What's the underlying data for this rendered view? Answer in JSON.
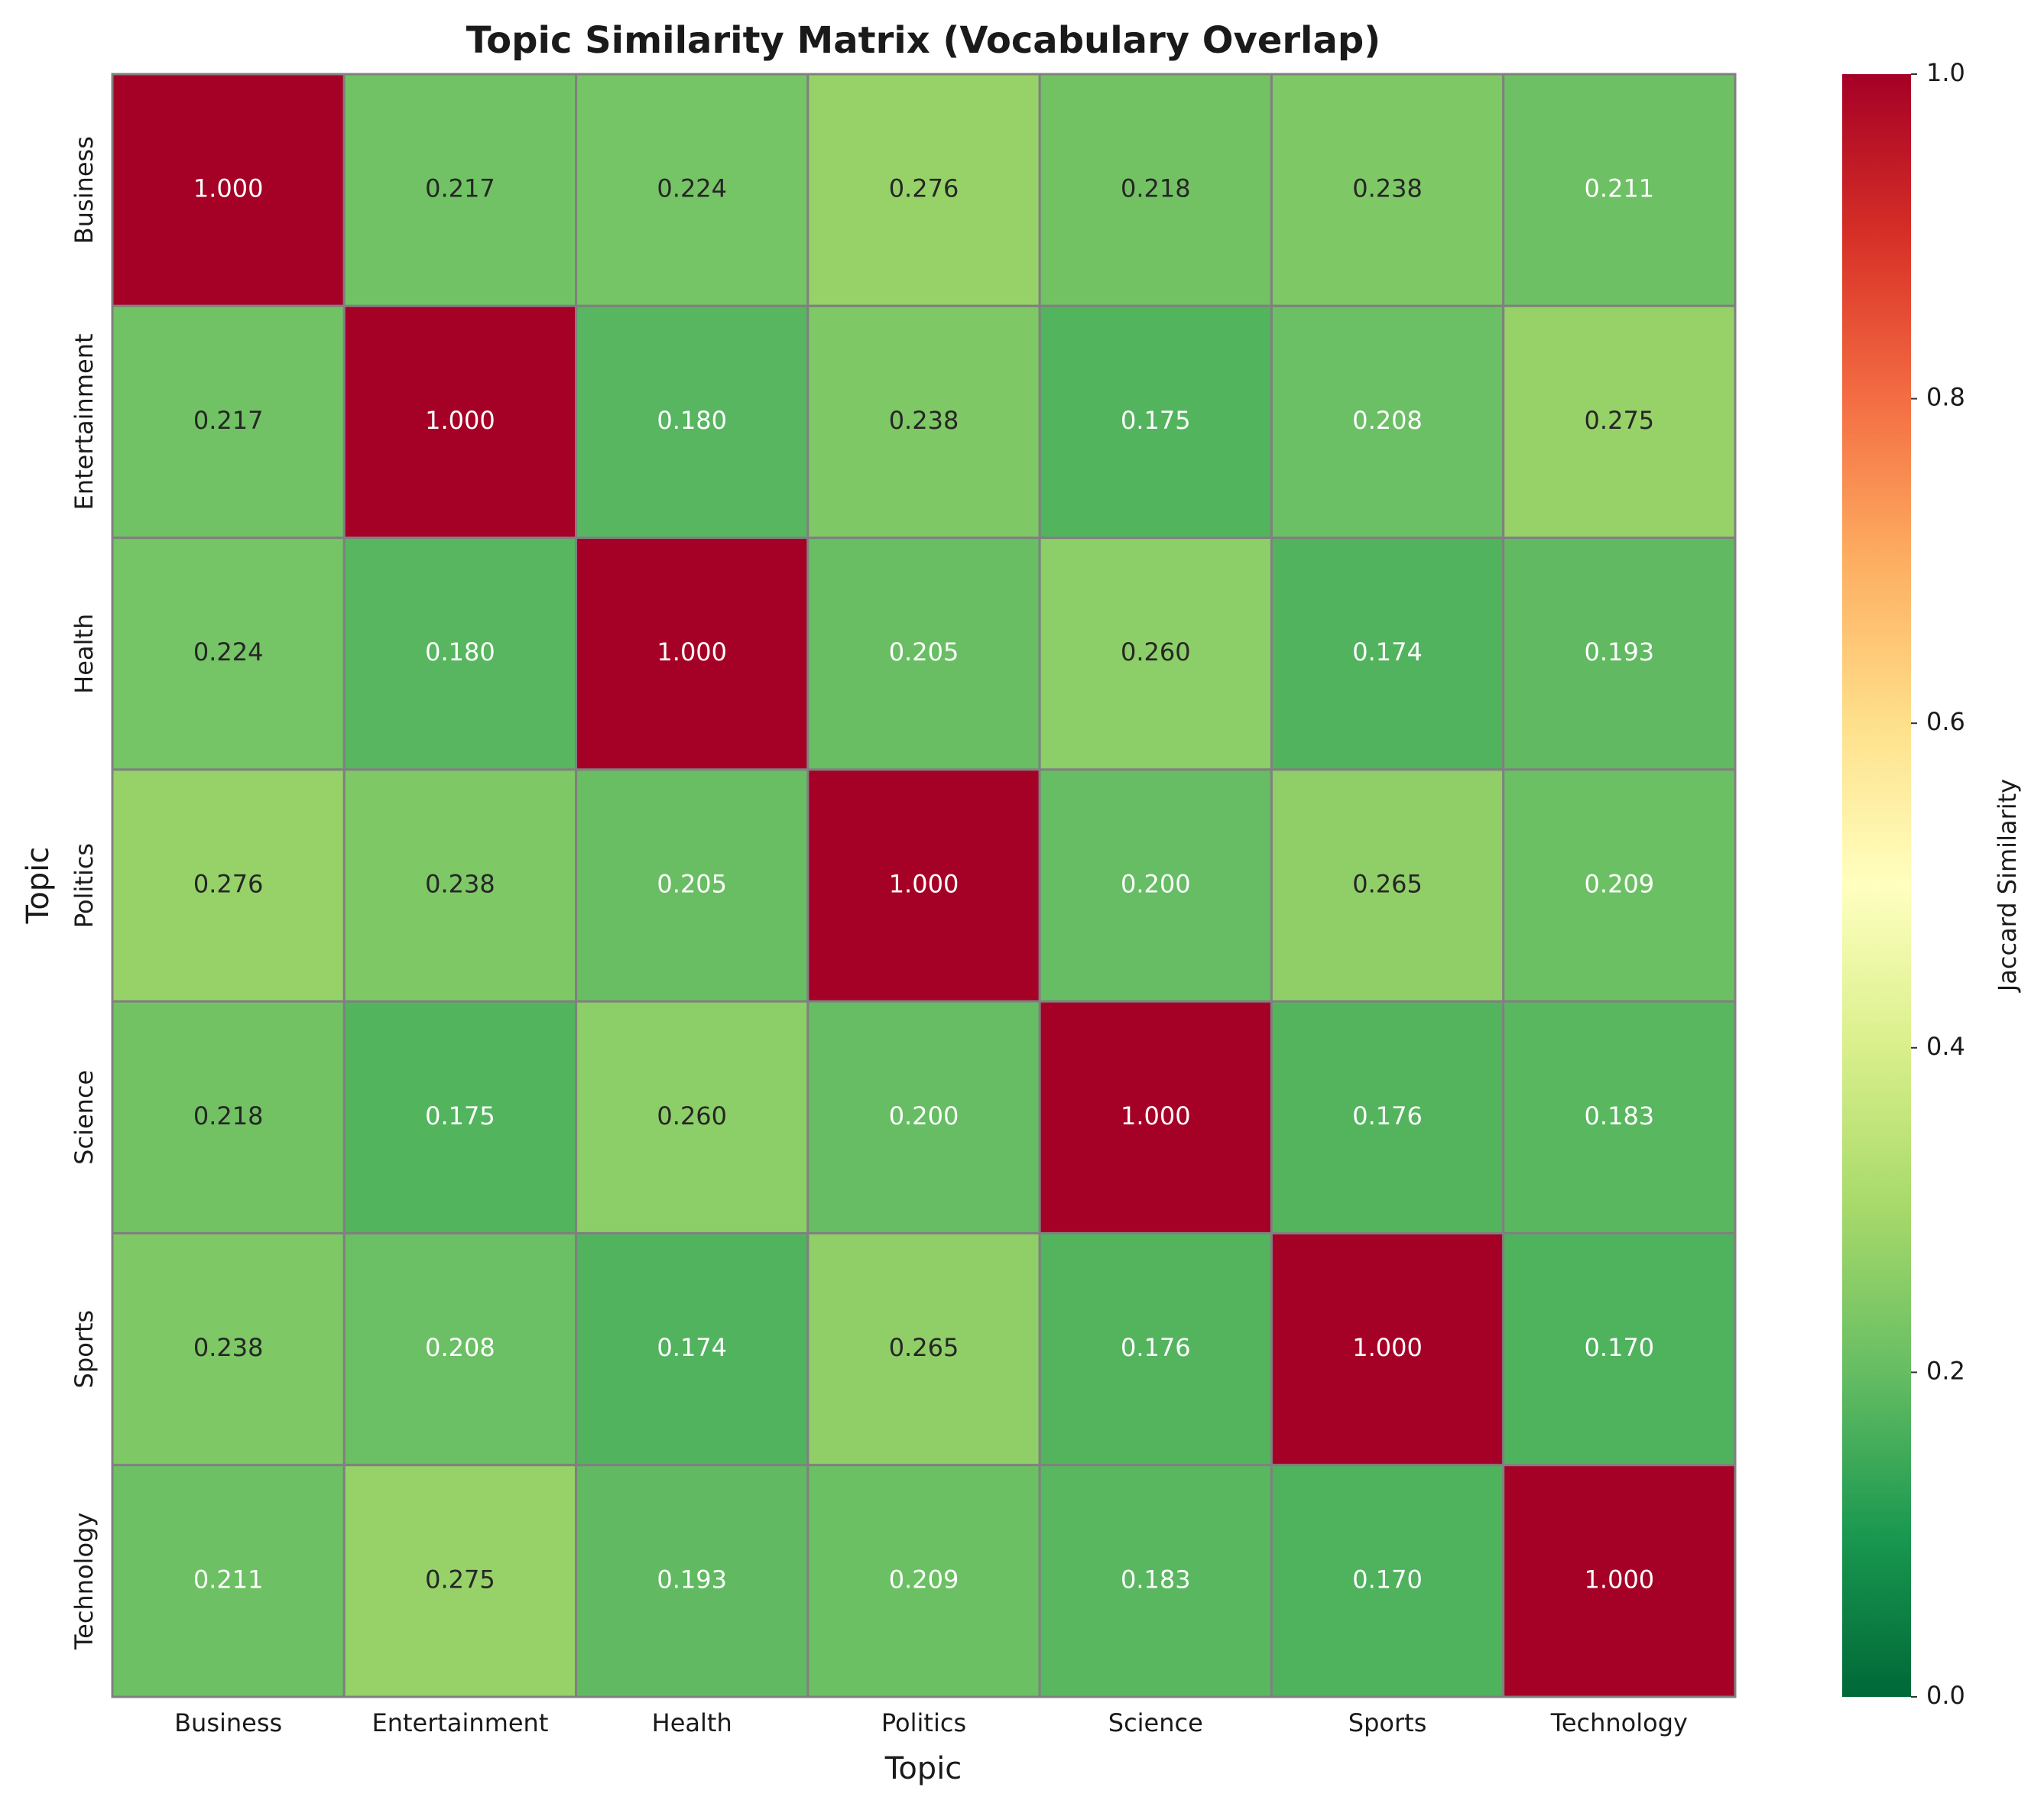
{
  "chart_data": {
    "type": "heatmap",
    "title": "Topic Similarity Matrix (Vocabulary Overlap)",
    "xlabel": "Topic",
    "ylabel": "Topic",
    "x_categories": [
      "Business",
      "Entertainment",
      "Health",
      "Politics",
      "Science",
      "Sports",
      "Technology"
    ],
    "y_categories": [
      "Business",
      "Entertainment",
      "Health",
      "Politics",
      "Science",
      "Sports",
      "Technology"
    ],
    "values": [
      [
        1,
        0.217,
        0.224,
        0.276,
        0.218,
        0.238,
        0.211
      ],
      [
        0.217,
        1,
        0.18,
        0.238,
        0.175,
        0.208,
        0.275
      ],
      [
        0.224,
        0.18,
        1,
        0.205,
        0.26,
        0.174,
        0.193
      ],
      [
        0.276,
        0.238,
        0.205,
        1,
        0.2,
        0.265,
        0.209
      ],
      [
        0.218,
        0.175,
        0.26,
        0.2,
        1,
        0.176,
        0.183
      ],
      [
        0.238,
        0.208,
        0.174,
        0.265,
        0.176,
        1,
        0.17
      ],
      [
        0.211,
        0.275,
        0.193,
        0.209,
        0.183,
        0.17,
        1
      ]
    ],
    "value_labels": [
      [
        "1.000",
        "0.217",
        "0.224",
        "0.276",
        "0.218",
        "0.238",
        "0.211"
      ],
      [
        "0.217",
        "1.000",
        "0.180",
        "0.238",
        "0.175",
        "0.208",
        "0.275"
      ],
      [
        "0.224",
        "0.180",
        "1.000",
        "0.205",
        "0.260",
        "0.174",
        "0.193"
      ],
      [
        "0.276",
        "0.238",
        "0.205",
        "1.000",
        "0.200",
        "0.265",
        "0.209"
      ],
      [
        "0.218",
        "0.175",
        "0.260",
        "0.200",
        "1.000",
        "0.176",
        "0.183"
      ],
      [
        "0.238",
        "0.208",
        "0.174",
        "0.265",
        "0.176",
        "1.000",
        "0.170"
      ],
      [
        "0.211",
        "0.275",
        "0.193",
        "0.209",
        "0.183",
        "0.170",
        "1.000"
      ]
    ],
    "colorbar_label": "Jaccard Similarity",
    "clim": [
      0,
      1
    ],
    "cticks": [
      {
        "value": 0,
        "label": "0.0"
      },
      0.2,
      0.4,
      0.6,
      0.8,
      {
        "value": 1,
        "label": "1.0"
      }
    ],
    "colors": [
      "#006837",
      "#1a9850",
      "#66bd63",
      "#a6d96a",
      "#d9ef8b",
      "#ffffbf",
      "#fee08b",
      "#fdae61",
      "#f46d43",
      "#d73027",
      "#a50026"
    ],
    "cell_border": "#808080"
  }
}
